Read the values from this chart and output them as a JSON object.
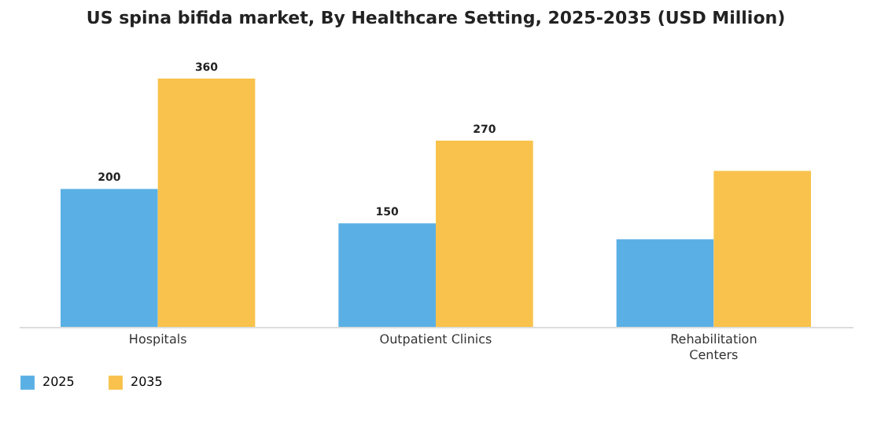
{
  "chart_data": {
    "type": "bar",
    "title": "US spina bifida market, By Healthcare Setting, 2025-2035 (USD Million)",
    "categories": [
      "Hospitals",
      "Outpatient Clinics",
      "Rehabilitation Centers"
    ],
    "series": [
      {
        "name": "2025",
        "color": "#5ab0e4",
        "values": [
          200,
          150,
          127
        ],
        "value_labels": [
          "200",
          "150",
          null
        ]
      },
      {
        "name": "2035",
        "color": "#f8c24c",
        "values": [
          360,
          270,
          226
        ],
        "value_labels": [
          "360",
          "270",
          null
        ]
      }
    ],
    "legend": "bottom",
    "grid": false
  }
}
